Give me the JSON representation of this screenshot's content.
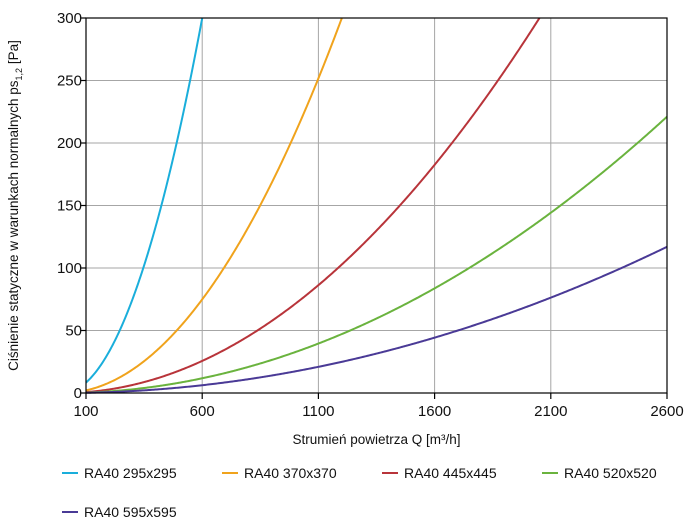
{
  "chart_data": {
    "type": "line",
    "xlabel": "Strumień powietrza Q [m³/h]",
    "ylabel": {
      "main": "Ciśnienie statyczne w warunkach normalnych ps",
      "subscript": "1,2",
      "unit": " [Pa]"
    },
    "xlim": [
      100,
      2600
    ],
    "ylim": [
      0,
      300
    ],
    "xticks": [
      100,
      600,
      1100,
      1600,
      2100,
      2600
    ],
    "yticks": [
      0,
      50,
      100,
      150,
      200,
      250,
      300
    ],
    "grid": true,
    "legend_position": "bottom",
    "series": [
      {
        "name": "RA40 295x295",
        "color": "#1aaedb",
        "a": 0.000833,
        "x": [
          100,
          200,
          300,
          400,
          500,
          600
        ],
        "y": [
          8,
          33,
          75,
          133,
          208,
          300
        ]
      },
      {
        "name": "RA40 370x370",
        "color": "#f0a31c",
        "a": 0.000208,
        "x": [
          100,
          200,
          400,
          600,
          800,
          1000,
          1100,
          1200
        ],
        "y": [
          2,
          8,
          33,
          75,
          133,
          208,
          252,
          300
        ]
      },
      {
        "name": "RA40 445x445",
        "color": "#b8343a",
        "a": 7.13e-05,
        "x": [
          100,
          500,
          1000,
          1500,
          2000,
          2050
        ],
        "y": [
          1,
          18,
          71,
          160,
          285,
          300
        ]
      },
      {
        "name": "RA40 520x520",
        "color": "#6ab33e",
        "a": 3.27e-05,
        "x": [
          100,
          600,
          1100,
          1600,
          2100,
          2600
        ],
        "y": [
          0,
          12,
          40,
          84,
          144,
          221
        ]
      },
      {
        "name": "RA40 595x595",
        "color": "#4a3a96",
        "a": 1.73e-05,
        "x": [
          100,
          600,
          1100,
          1600,
          2100,
          2600
        ],
        "y": [
          0,
          6,
          21,
          44,
          76,
          117
        ]
      }
    ]
  }
}
